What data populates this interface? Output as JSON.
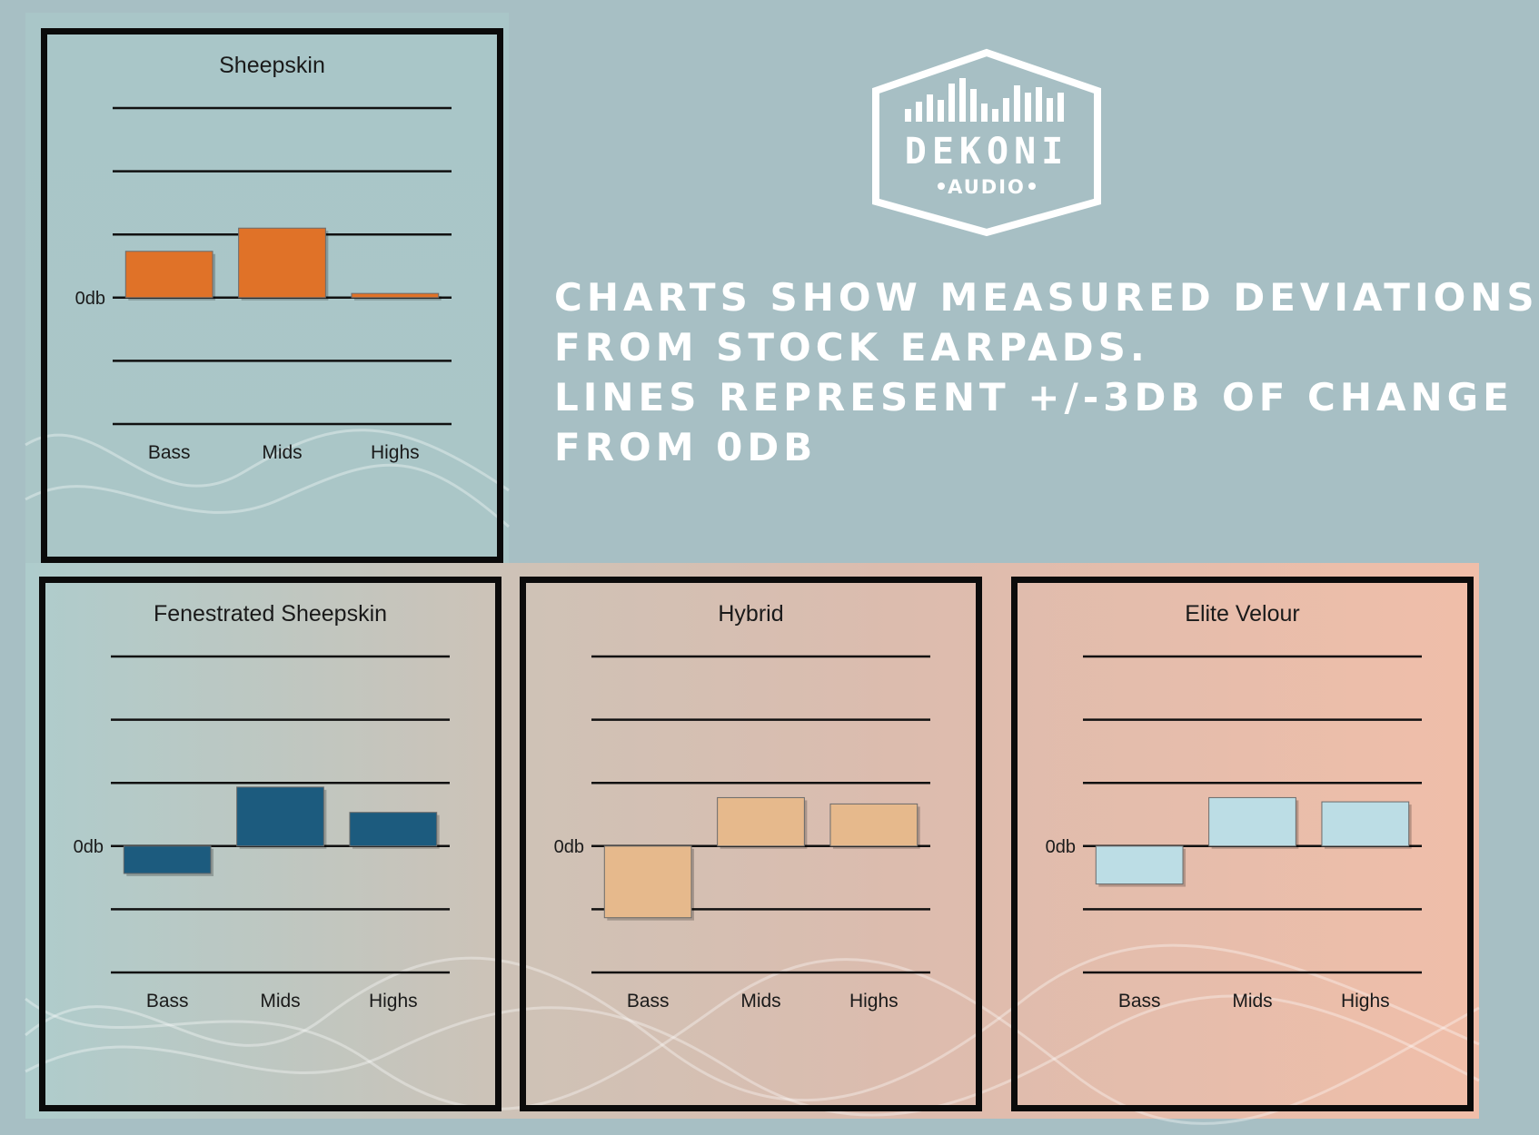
{
  "logo": {
    "name": "DEKONI",
    "subtitle": "AUDIO"
  },
  "headline_lines": [
    "CHARTS SHOW MEASURED DEVIATIONS",
    "FROM STOCK EARPADS.",
    "LINES REPRESENT +/-3DB OF CHANGE",
    "FROM 0DB"
  ],
  "colors": {
    "sheepskin": "#e07228",
    "fenestrated": "#1c5b7e",
    "hybrid": "#e6b98c",
    "velour": "#bcdde5"
  },
  "chart_data": [
    {
      "type": "bar",
      "title": "Sheepskin",
      "categories": [
        "Bass",
        "Mids",
        "Highs"
      ],
      "values": [
        2.2,
        3.3,
        0.2
      ],
      "zero_label": "0db",
      "ylim": [
        -6,
        9
      ],
      "gridlines": [
        9,
        6,
        3,
        0,
        -3,
        -6
      ],
      "grid": true,
      "legend": "none"
    },
    {
      "type": "bar",
      "title": "Fenestrated Sheepskin",
      "categories": [
        "Bass",
        "Mids",
        "Highs"
      ],
      "values": [
        -1.3,
        2.8,
        1.6
      ],
      "zero_label": "0db",
      "ylim": [
        -6,
        9
      ],
      "gridlines": [
        9,
        6,
        3,
        0,
        -3,
        -6
      ],
      "grid": true,
      "legend": "none"
    },
    {
      "type": "bar",
      "title": "Hybrid",
      "categories": [
        "Bass",
        "Mids",
        "Highs"
      ],
      "values": [
        -3.4,
        2.3,
        2.0
      ],
      "zero_label": "0db",
      "ylim": [
        -6,
        9
      ],
      "gridlines": [
        9,
        6,
        3,
        0,
        -3,
        -6
      ],
      "grid": true,
      "legend": "none"
    },
    {
      "type": "bar",
      "title": "Elite Velour",
      "categories": [
        "Bass",
        "Mids",
        "Highs"
      ],
      "values": [
        -1.8,
        2.3,
        2.1
      ],
      "zero_label": "0db",
      "ylim": [
        -6,
        9
      ],
      "gridlines": [
        9,
        6,
        3,
        0,
        -3,
        -6
      ],
      "grid": true,
      "legend": "none"
    }
  ]
}
